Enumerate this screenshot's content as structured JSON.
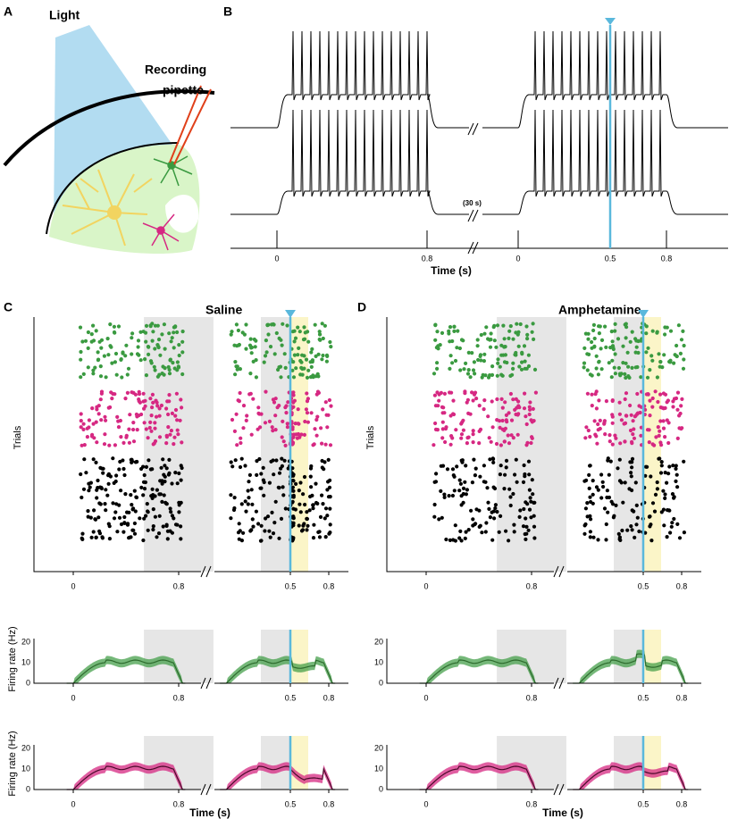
{
  "panels": {
    "A": {
      "label": "A",
      "light": "Light",
      "pipette": [
        "Recording",
        "pipette"
      ]
    },
    "B": {
      "label": "B",
      "ticks": [
        "0",
        "0.8",
        "0",
        "0.5",
        "0.8"
      ],
      "gap": "(30 s)",
      "xlabel": "Time (s)"
    },
    "C": {
      "label": "C",
      "title": "Saline",
      "ylabel": "Trials",
      "ticks": [
        "0",
        "0.8",
        "0.5",
        "0.8"
      ],
      "rate_yticks": [
        "20",
        "10",
        "0"
      ],
      "rate_ylabel": "Firing rate (Hz)",
      "xlabel": "Time (s)"
    },
    "D": {
      "label": "D",
      "title": "Amphetamine",
      "ylabel": "Trials",
      "ticks": [
        "0",
        "0.8",
        "0.5",
        "0.8"
      ],
      "rate_yticks": [
        "20",
        "10",
        "0"
      ],
      "xlabel": "Time (s)"
    }
  }
}
